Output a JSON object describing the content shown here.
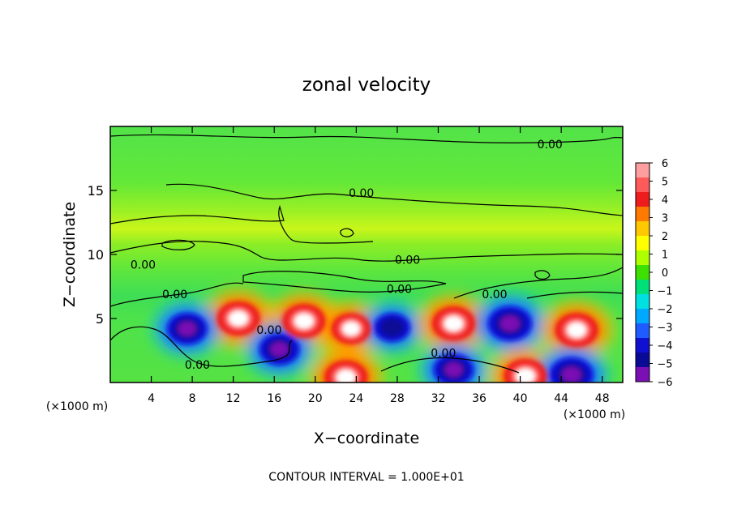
{
  "chart_data": {
    "type": "heatmap",
    "title": "zonal velocity",
    "xlabel": "X−coordinate",
    "ylabel": "Z−coordinate",
    "x_unit_left": "(×1000 m)",
    "x_unit_right": "(×1000 m)",
    "footer": "CONTOUR INTERVAL = 1.000E+01",
    "xlim": [
      0,
      50
    ],
    "ylim": [
      0,
      20
    ],
    "x_ticks": [
      "4",
      "8",
      "12",
      "16",
      "20",
      "24",
      "28",
      "32",
      "36",
      "40",
      "44",
      "48"
    ],
    "y_ticks": [
      "5",
      "10",
      "15"
    ],
    "colorbar": {
      "range": [
        -6,
        6
      ],
      "labels": [
        "6",
        "5",
        "4",
        "3",
        "2",
        "1",
        "0",
        "−1",
        "−2",
        "−3",
        "−4",
        "−5",
        "−6"
      ],
      "colors": [
        "#ff9ea0",
        "#ff5a5a",
        "#ee1c1c",
        "#ff7a00",
        "#ffc800",
        "#ffff00",
        "#aeff00",
        "#3ee000",
        "#00e07a",
        "#00e0e0",
        "#00a8ff",
        "#1e5cff",
        "#1010d0",
        "#0a0a96",
        "#7a10b4"
      ]
    },
    "contour_labels": [
      {
        "text": "0.00",
        "x": 42.9,
        "z": 18.6
      },
      {
        "text": "0.00",
        "x": 24.5,
        "z": 14.8
      },
      {
        "text": "0.00",
        "x": 3.2,
        "z": 9.2
      },
      {
        "text": "0.00",
        "x": 29.0,
        "z": 9.6
      },
      {
        "text": "0.00",
        "x": 6.3,
        "z": 6.9
      },
      {
        "text": "0.00",
        "x": 28.2,
        "z": 7.3
      },
      {
        "text": "0.00",
        "x": 37.5,
        "z": 6.9
      },
      {
        "text": "0.00",
        "x": 15.5,
        "z": 4.1
      },
      {
        "text": "0.00",
        "x": 32.5,
        "z": 2.3
      },
      {
        "text": "0.00",
        "x": 8.5,
        "z": 1.4
      }
    ],
    "features": [
      {
        "kind": "positive_max",
        "x": 12.5,
        "z": 5.0,
        "peak": 6
      },
      {
        "kind": "negative_min",
        "x": 7.5,
        "z": 4.2,
        "peak": -5
      },
      {
        "kind": "positive_max",
        "x": 18.9,
        "z": 4.8,
        "peak": 6
      },
      {
        "kind": "positive_max",
        "x": 23.5,
        "z": 4.2,
        "peak": 5
      },
      {
        "kind": "negative_min",
        "x": 16.5,
        "z": 2.6,
        "peak": -5
      },
      {
        "kind": "negative_min",
        "x": 27.5,
        "z": 4.3,
        "peak": -4
      },
      {
        "kind": "positive_max",
        "x": 33.5,
        "z": 4.6,
        "peak": 6
      },
      {
        "kind": "negative_min",
        "x": 39.0,
        "z": 4.6,
        "peak": -6
      },
      {
        "kind": "positive_max",
        "x": 45.5,
        "z": 4.1,
        "peak": 6
      },
      {
        "kind": "negative_min",
        "x": 33.5,
        "z": 1.0,
        "peak": -5
      },
      {
        "kind": "positive_max",
        "x": 40.5,
        "z": 0.5,
        "peak": 6
      },
      {
        "kind": "positive_max",
        "x": 23.0,
        "z": 0.4,
        "peak": 6
      },
      {
        "kind": "negative_min",
        "x": 45.0,
        "z": 0.6,
        "peak": -6
      }
    ]
  }
}
